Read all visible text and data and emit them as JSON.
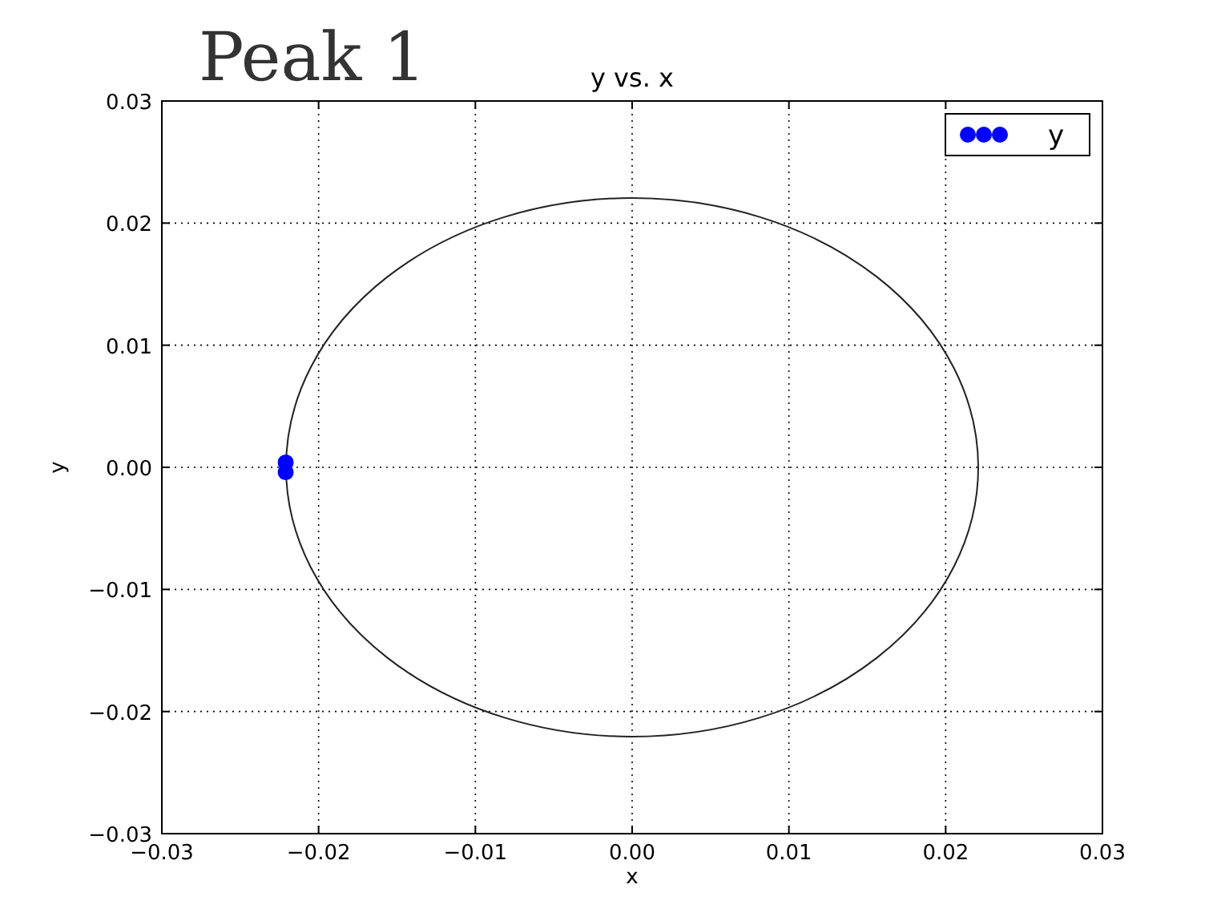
{
  "chart_data": {
    "type": "scatter",
    "title": "y vs. x",
    "xlabel": "x",
    "ylabel": "y",
    "annotations": [
      "Peak 1"
    ],
    "xlim": [
      -0.03,
      0.03
    ],
    "ylim": [
      -0.03,
      0.03
    ],
    "xticks": [
      {
        "value": -0.03,
        "label": "−0.03"
      },
      {
        "value": -0.02,
        "label": "−0.02"
      },
      {
        "value": -0.01,
        "label": "−0.01"
      },
      {
        "value": 0,
        "label": "0.00"
      },
      {
        "value": 0.01,
        "label": "0.01"
      },
      {
        "value": 0.02,
        "label": "0.02"
      },
      {
        "value": 0.03,
        "label": "0.03"
      }
    ],
    "yticks": [
      {
        "value": -0.03,
        "label": "−0.03"
      },
      {
        "value": -0.02,
        "label": "−0.02"
      },
      {
        "value": -0.01,
        "label": "−0.01"
      },
      {
        "value": 0,
        "label": "0.00"
      },
      {
        "value": 0.01,
        "label": "0.01"
      },
      {
        "value": 0.02,
        "label": "0.02"
      },
      {
        "value": 0.03,
        "label": "0.03"
      }
    ],
    "grid": true,
    "legend": "top right",
    "marker": "circle",
    "series": [
      {
        "name": "y",
        "color": "#0000ff",
        "x": [
          -0.0221,
          -0.0221
        ],
        "values": [
          -0.0004,
          0.0004
        ]
      }
    ]
  }
}
